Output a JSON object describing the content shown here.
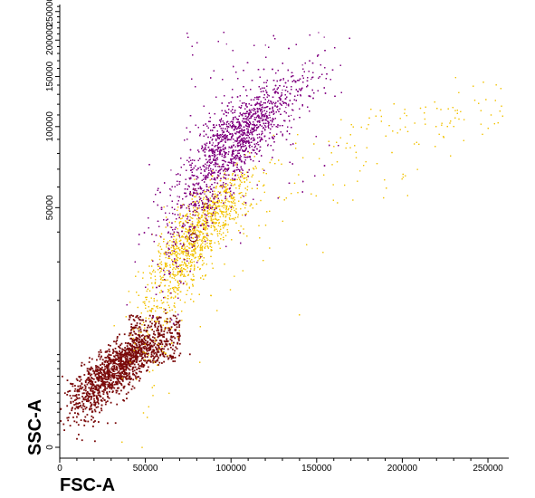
{
  "chart_data": {
    "type": "scatter",
    "title": "",
    "xlabel": "FSC-A",
    "ylabel": "SSC-A",
    "xlim": [
      0,
      262144
    ],
    "ylim": [
      0,
      262144
    ],
    "y_scale": "biexponential",
    "x_scale": "linear",
    "grid": false,
    "legend": "none",
    "x_ticks": [
      0,
      50000,
      100000,
      150000,
      200000,
      250000
    ],
    "x_tick_labels": [
      "0",
      "50000",
      "100000",
      "150000",
      "200000",
      "250000"
    ],
    "y_ticks": [
      0,
      50000,
      100000,
      150000,
      200000,
      250000
    ],
    "y_tick_labels": [
      "0",
      "50000",
      "100000",
      "150000",
      "200000",
      "250000"
    ],
    "series": [
      {
        "color": "#7a0a0a",
        "marker_color": "#ffffff",
        "centroid": [
          32000,
          8000
        ],
        "spread": [
          13000,
          3000
        ],
        "count": 1500,
        "values": [
          [
            15000,
            5000
          ],
          [
            22000,
            7000
          ],
          [
            32000,
            8000
          ],
          [
            45000,
            10000
          ],
          [
            55000,
            13000
          ],
          [
            62000,
            12000
          ]
        ]
      },
      {
        "color": "#f2c200",
        "marker_color": "#7a0a0a",
        "centroid": [
          78000,
          38000
        ],
        "spread": [
          14000,
          14000
        ],
        "count": 4500,
        "values": [
          [
            55000,
            18000
          ],
          [
            65000,
            25000
          ],
          [
            78000,
            38000
          ],
          [
            88000,
            48000
          ],
          [
            120000,
            45000
          ],
          [
            180000,
            80000
          ],
          [
            240000,
            120000
          ]
        ]
      },
      {
        "color": "#800080",
        "marker_color": "#ffffff",
        "centroid": [
          100000,
          86000
        ],
        "spread": [
          20000,
          25000
        ],
        "count": 11000,
        "values": [
          [
            70000,
            55000
          ],
          [
            85000,
            70000
          ],
          [
            100000,
            86000
          ],
          [
            115000,
            110000
          ],
          [
            130000,
            150000
          ],
          [
            140000,
            220000
          ]
        ]
      }
    ]
  }
}
